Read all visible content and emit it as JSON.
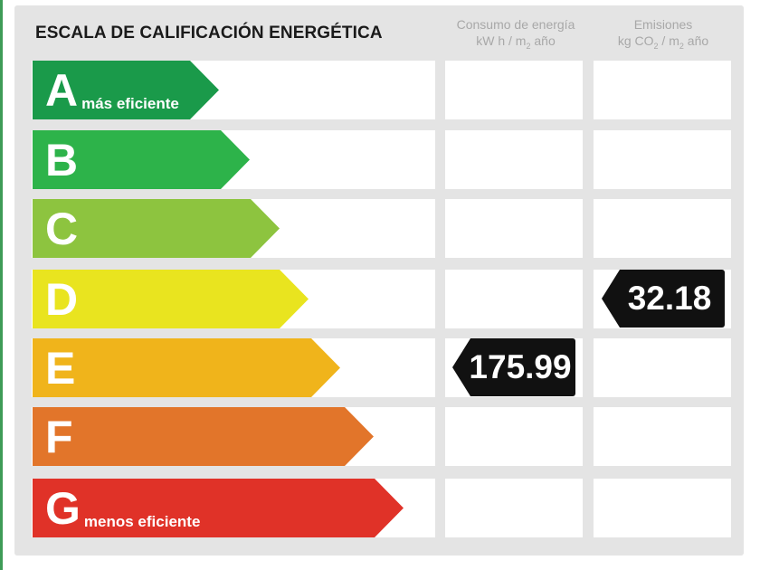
{
  "title": "ESCALA DE CALIFICACIÓN ENERGÉTICA",
  "columns": {
    "consumo": {
      "line1": "Consumo de energía",
      "line2_pre": "kW h / m",
      "line2_sub": "2",
      "line2_post": " año"
    },
    "emisiones": {
      "line1": "Emisiones",
      "line2_pre": "kg CO",
      "line2_sub": "2",
      "line2_mid": " / m",
      "line2_sub2": "2",
      "line2_post": " año"
    }
  },
  "ratings": [
    {
      "letter": "A",
      "sub": "más eficiente",
      "color": "#1a9a4a"
    },
    {
      "letter": "B",
      "sub": "",
      "color": "#2db34a"
    },
    {
      "letter": "C",
      "sub": "",
      "color": "#8dc43f"
    },
    {
      "letter": "D",
      "sub": "",
      "color": "#e9e41f"
    },
    {
      "letter": "E",
      "sub": "",
      "color": "#f0b41b"
    },
    {
      "letter": "F",
      "sub": "",
      "color": "#e2752a"
    },
    {
      "letter": "G",
      "sub": "menos eficiente",
      "color": "#e03228"
    }
  ],
  "consumo_value": {
    "rating": "E",
    "value": "175.99"
  },
  "emisiones_value": {
    "rating": "D",
    "value": "32.18"
  }
}
